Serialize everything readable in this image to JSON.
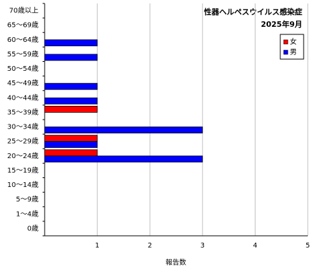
{
  "chart_data": {
    "type": "hbar",
    "title": "性器ヘルペスウイルス感染症",
    "subtitle": "2025年9月",
    "x_label": "報告数",
    "categories": [
      "70歳以上",
      "65～69歳",
      "60～64歳",
      "55～59歳",
      "50～54歳",
      "45～49歳",
      "40～44歳",
      "35～39歳",
      "30～34歳",
      "25～29歳",
      "20～24歳",
      "15～19歳",
      "10～14歳",
      "5～9歳",
      "1～4歳",
      "0歳"
    ],
    "series": [
      {
        "name": "女",
        "color": "#ff0000",
        "values": [
          0,
          0,
          0,
          0,
          0,
          0,
          0,
          1,
          0,
          1,
          1,
          0,
          0,
          0,
          0,
          0
        ]
      },
      {
        "name": "男",
        "color": "#0000ff",
        "values": [
          0,
          0,
          1,
          1,
          0,
          1,
          1,
          0,
          3,
          1,
          3,
          0,
          0,
          0,
          0,
          0
        ]
      }
    ],
    "xlim": [
      0,
      5
    ],
    "xticks": [
      1,
      2,
      3,
      4,
      5
    ],
    "grid": true
  }
}
